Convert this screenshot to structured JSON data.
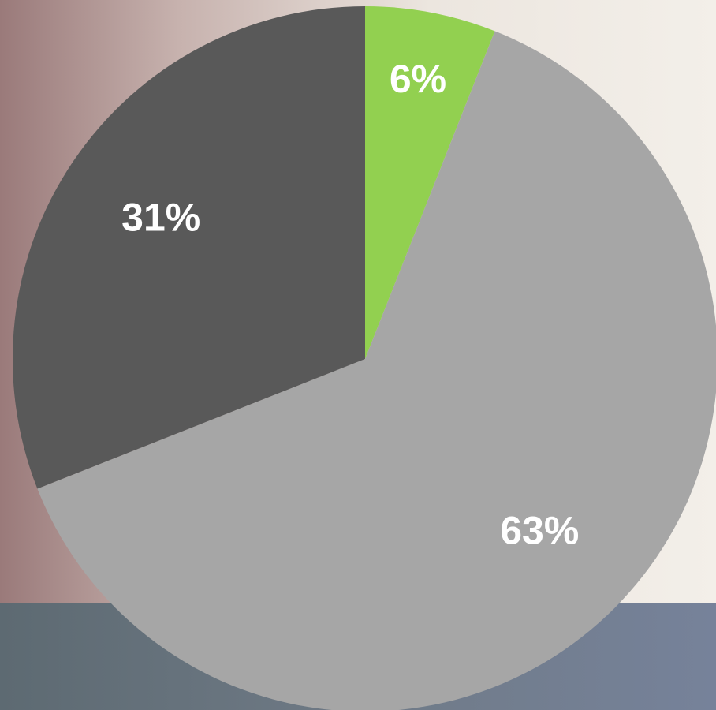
{
  "chart_data": {
    "type": "pie",
    "values": [
      6,
      63,
      31
    ],
    "value_labels": [
      "6%",
      "63%",
      "31%"
    ],
    "colors": [
      "#92d050",
      "#a6a6a6",
      "#595959"
    ]
  }
}
